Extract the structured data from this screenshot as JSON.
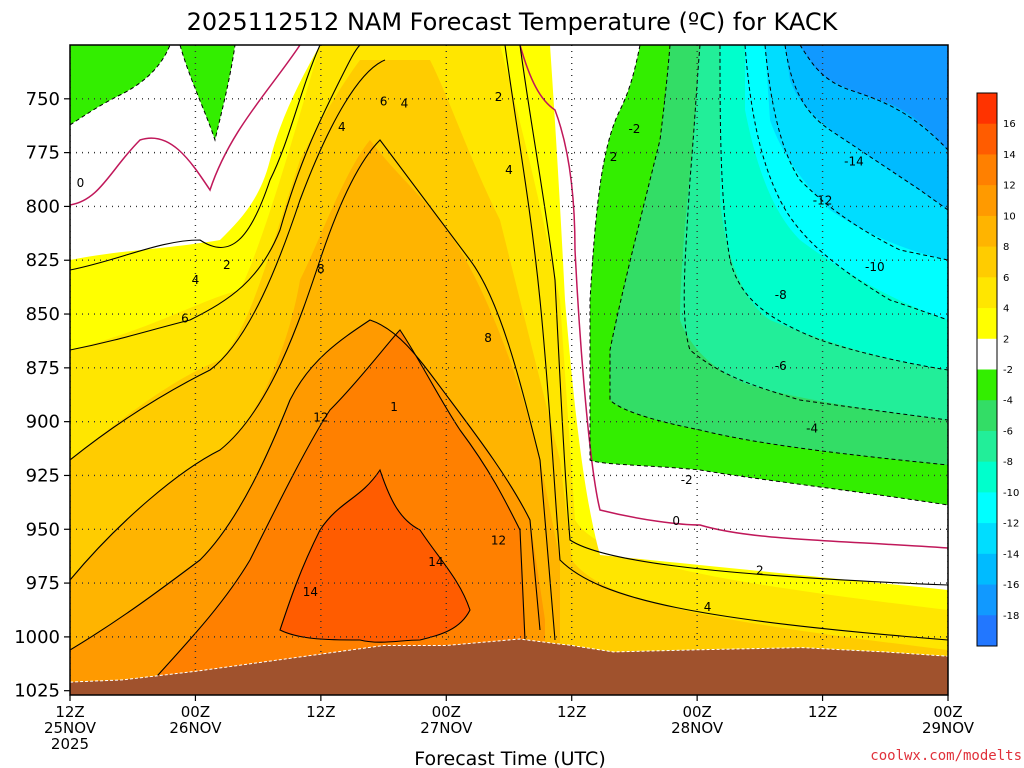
{
  "title": "2025112512 NAM Forecast Temperature (ºC) for KACK",
  "xlabel": "Forecast Time (UTC)",
  "credit": "coolwx.com/modelts",
  "chart_data": {
    "type": "heatmap",
    "title": "2025112512 NAM Forecast Temperature (ºC) for KACK",
    "xlabel": "Forecast Time (UTC)",
    "ylabel": "",
    "y_ticks": [
      750,
      775,
      800,
      825,
      850,
      875,
      900,
      925,
      950,
      975,
      1000,
      1025
    ],
    "y_range": [
      725,
      1027
    ],
    "y_reversed": true,
    "x_ticks": [
      {
        "hour": 0,
        "top": "12Z",
        "mid": "25NOV",
        "bot": "2025"
      },
      {
        "hour": 12,
        "top": "00Z",
        "mid": "26NOV",
        "bot": ""
      },
      {
        "hour": 24,
        "top": "12Z",
        "mid": "",
        "bot": ""
      },
      {
        "hour": 36,
        "top": "00Z",
        "mid": "27NOV",
        "bot": ""
      },
      {
        "hour": 48,
        "top": "12Z",
        "mid": "",
        "bot": ""
      },
      {
        "hour": 60,
        "top": "00Z",
        "mid": "28NOV",
        "bot": ""
      },
      {
        "hour": 72,
        "top": "12Z",
        "mid": "",
        "bot": ""
      },
      {
        "hour": 84,
        "top": "00Z",
        "mid": "29NOV",
        "bot": ""
      }
    ],
    "x_range_hours": [
      0,
      84
    ],
    "grid": "dotted",
    "colorbar": {
      "labels": [
        16,
        14,
        12,
        10,
        8,
        6,
        4,
        2,
        -2,
        -4,
        -6,
        -8,
        -10,
        -12,
        -14,
        -16,
        -18
      ],
      "colors": [
        "#ff3300",
        "#ff5c00",
        "#ff8000",
        "#ff9a00",
        "#ffb400",
        "#ffcc00",
        "#ffe600",
        "#ffff00",
        "#ffffff",
        "#33ee00",
        "#33dd66",
        "#22ee99",
        "#00ffcc",
        "#00ffff",
        "#00ddff",
        "#00bbff",
        "#1199ff",
        "#2277ff"
      ]
    },
    "surface_pressure": [
      {
        "hour": 0,
        "hPa": 1021
      },
      {
        "hour": 5,
        "hPa": 1020
      },
      {
        "hour": 12,
        "hPa": 1016
      },
      {
        "hour": 18,
        "hPa": 1012
      },
      {
        "hour": 24,
        "hPa": 1008
      },
      {
        "hour": 30,
        "hPa": 1004
      },
      {
        "hour": 36,
        "hPa": 1004
      },
      {
        "hour": 43,
        "hPa": 1001
      },
      {
        "hour": 48,
        "hPa": 1004
      },
      {
        "hour": 52,
        "hPa": 1007
      },
      {
        "hour": 60,
        "hPa": 1006
      },
      {
        "hour": 70,
        "hPa": 1005
      },
      {
        "hour": 78,
        "hPa": 1007
      },
      {
        "hour": 84,
        "hPa": 1009
      }
    ],
    "temperature_bands": [
      {
        "value_c": 0,
        "color": "#ffffff"
      },
      {
        "value_c": 2,
        "color": "#ffff00"
      },
      {
        "value_c": 4,
        "color": "#ffe600"
      },
      {
        "value_c": 6,
        "color": "#ffcc00"
      },
      {
        "value_c": 8,
        "color": "#ffb400"
      },
      {
        "value_c": 10,
        "color": "#ff9a00"
      },
      {
        "value_c": 12,
        "color": "#ff8000"
      },
      {
        "value_c": 14,
        "color": "#ff5c00"
      },
      {
        "value_c": -2,
        "color": "#33ee00"
      },
      {
        "value_c": -4,
        "color": "#33dd66"
      },
      {
        "value_c": -6,
        "color": "#22ee99"
      },
      {
        "value_c": -8,
        "color": "#00ffcc"
      },
      {
        "value_c": -10,
        "color": "#00ffff"
      },
      {
        "value_c": -12,
        "color": "#00ddff"
      },
      {
        "value_c": -14,
        "color": "#00bbff"
      },
      {
        "value_c": -16,
        "color": "#1199ff"
      }
    ],
    "contour_labels": [
      {
        "text": "0",
        "hour": 1,
        "hPa": 791
      },
      {
        "text": "2",
        "hour": 15,
        "hPa": 829
      },
      {
        "text": "4",
        "hour": 12,
        "hPa": 836
      },
      {
        "text": "6",
        "hour": 11,
        "hPa": 854
      },
      {
        "text": "4",
        "hour": 26,
        "hPa": 765
      },
      {
        "text": "6",
        "hour": 30,
        "hPa": 753
      },
      {
        "text": "4",
        "hour": 32,
        "hPa": 754
      },
      {
        "text": "2",
        "hour": 41,
        "hPa": 751
      },
      {
        "text": "4",
        "hour": 42,
        "hPa": 785
      },
      {
        "text": "8",
        "hour": 24,
        "hPa": 831
      },
      {
        "text": "8",
        "hour": 40,
        "hPa": 863
      },
      {
        "text": "12",
        "hour": 24,
        "hPa": 900
      },
      {
        "text": "1",
        "hour": 31,
        "hPa": 895
      },
      {
        "text": "14",
        "hour": 23,
        "hPa": 981
      },
      {
        "text": "14",
        "hour": 35,
        "hPa": 967
      },
      {
        "text": "12",
        "hour": 41,
        "hPa": 957
      },
      {
        "text": "2",
        "hour": 52,
        "hPa": 779
      },
      {
        "text": "-2",
        "hour": 59,
        "hPa": 929
      },
      {
        "text": "0",
        "hour": 58,
        "hPa": 948
      },
      {
        "text": "2",
        "hour": 66,
        "hPa": 971
      },
      {
        "text": "4",
        "hour": 61,
        "hPa": 988
      },
      {
        "text": "-14",
        "hour": 75,
        "hPa": 781
      },
      {
        "text": "-12",
        "hour": 72,
        "hPa": 799
      },
      {
        "text": "-10",
        "hour": 77,
        "hPa": 830
      },
      {
        "text": "-8",
        "hour": 68,
        "hPa": 843
      },
      {
        "text": "-6",
        "hour": 68,
        "hPa": 876
      },
      {
        "text": "-4",
        "hour": 71,
        "hPa": 905
      },
      {
        "text": "-2",
        "hour": 54,
        "hPa": 766
      }
    ]
  }
}
